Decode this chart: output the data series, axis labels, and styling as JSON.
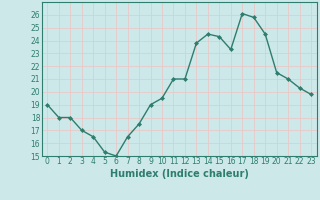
{
  "x_values": [
    0,
    1,
    2,
    3,
    4,
    5,
    6,
    7,
    8,
    9,
    10,
    11,
    12,
    13,
    14,
    15,
    16,
    17,
    18,
    19,
    20,
    21,
    22,
    23
  ],
  "y_values": [
    19,
    18,
    18,
    17,
    16.5,
    15.3,
    15,
    16.5,
    17.5,
    19,
    19.5,
    21,
    21,
    23.8,
    24.5,
    24.3,
    23.3,
    26.1,
    25.8,
    24.5,
    21.5,
    21,
    20.3,
    19.8
  ],
  "line_color": "#2e7d6e",
  "marker": "D",
  "marker_size": 2.0,
  "line_width": 1.0,
  "bg_color": "#cce8e8",
  "grid_color": "#e8c8c8",
  "xlabel": "Humidex (Indice chaleur)",
  "ylim": [
    15,
    27
  ],
  "xlim": [
    -0.5,
    23.5
  ],
  "yticks": [
    15,
    16,
    17,
    18,
    19,
    20,
    21,
    22,
    23,
    24,
    25,
    26
  ],
  "xticks": [
    0,
    1,
    2,
    3,
    4,
    5,
    6,
    7,
    8,
    9,
    10,
    11,
    12,
    13,
    14,
    15,
    16,
    17,
    18,
    19,
    20,
    21,
    22,
    23
  ],
  "tick_fontsize": 5.5,
  "xlabel_fontsize": 7.0
}
